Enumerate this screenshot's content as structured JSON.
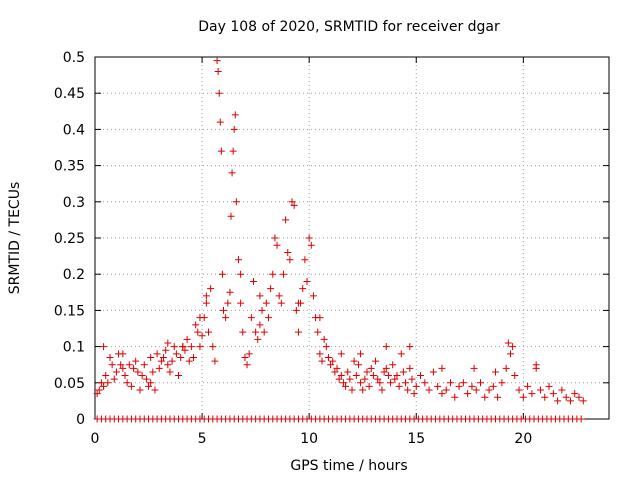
{
  "chart_data": {
    "type": "scatter",
    "title": "Day 108 of 2020, SRMTID for receiver dgar",
    "xlabel": "GPS time / hours",
    "ylabel": "SRMTID / TECUs",
    "xlim": [
      0,
      24
    ],
    "ylim": [
      0,
      0.5
    ],
    "x_ticks": [
      0,
      5,
      10,
      15,
      20
    ],
    "x_tick_labels": [
      "0",
      "5",
      "10",
      "15",
      "20"
    ],
    "y_ticks": [
      0,
      0.05,
      0.1,
      0.15,
      0.2,
      0.25,
      0.3,
      0.35,
      0.4,
      0.45,
      0.5
    ],
    "y_tick_labels": [
      "0",
      "0.05",
      "0.1",
      "0.15",
      "0.2",
      "0.25",
      "0.3",
      "0.35",
      "0.4",
      "0.45",
      "0.5"
    ],
    "grid": true,
    "marker": "+",
    "marker_color": "#dd0000",
    "series": [
      {
        "name": "SRMTID",
        "points": [
          [
            0.1,
            0.035
          ],
          [
            0.2,
            0.04
          ],
          [
            0.3,
            0.05
          ],
          [
            0.4,
            0.045
          ],
          [
            0.5,
            0.06
          ],
          [
            0.6,
            0.05
          ],
          [
            0.7,
            0.085
          ],
          [
            0.8,
            0.075
          ],
          [
            0.9,
            0.055
          ],
          [
            1.0,
            0.065
          ],
          [
            1.1,
            0.09
          ],
          [
            1.2,
            0.075
          ],
          [
            1.3,
            0.07
          ],
          [
            1.4,
            0.06
          ],
          [
            1.5,
            0.05
          ],
          [
            1.6,
            0.075
          ],
          [
            1.7,
            0.045
          ],
          [
            1.8,
            0.07
          ],
          [
            1.9,
            0.08
          ],
          [
            2.0,
            0.065
          ],
          [
            2.1,
            0.04
          ],
          [
            2.2,
            0.06
          ],
          [
            2.3,
            0.075
          ],
          [
            2.4,
            0.055
          ],
          [
            2.5,
            0.045
          ],
          [
            2.6,
            0.05
          ],
          [
            2.7,
            0.065
          ],
          [
            2.8,
            0.04
          ],
          [
            2.9,
            0.09
          ],
          [
            3.0,
            0.07
          ],
          [
            3.1,
            0.08
          ],
          [
            3.2,
            0.085
          ],
          [
            3.3,
            0.095
          ],
          [
            3.4,
            0.075
          ],
          [
            3.5,
            0.065
          ],
          [
            3.6,
            0.08
          ],
          [
            3.7,
            0.1
          ],
          [
            3.8,
            0.09
          ],
          [
            3.9,
            0.06
          ],
          [
            4.0,
            0.085
          ],
          [
            4.1,
            0.1
          ],
          [
            4.2,
            0.095
          ],
          [
            4.3,
            0.11
          ],
          [
            4.4,
            0.08
          ],
          [
            4.5,
            0.1
          ],
          [
            4.6,
            0.085
          ],
          [
            4.7,
            0.13
          ],
          [
            4.8,
            0.12
          ],
          [
            4.9,
            0.1
          ],
          [
            5.0,
            0.115
          ],
          [
            5.1,
            0.14
          ],
          [
            5.2,
            0.16
          ],
          [
            5.3,
            0.12
          ],
          [
            5.4,
            0.18
          ],
          [
            5.5,
            0.1
          ],
          [
            5.6,
            0.08
          ],
          [
            5.7,
            0.495
          ],
          [
            5.75,
            0.48
          ],
          [
            5.8,
            0.45
          ],
          [
            5.85,
            0.41
          ],
          [
            5.9,
            0.37
          ],
          [
            5.95,
            0.2
          ],
          [
            6.0,
            0.15
          ],
          [
            6.1,
            0.14
          ],
          [
            6.2,
            0.16
          ],
          [
            6.3,
            0.175
          ],
          [
            6.35,
            0.28
          ],
          [
            6.4,
            0.34
          ],
          [
            6.45,
            0.37
          ],
          [
            6.5,
            0.4
          ],
          [
            6.55,
            0.42
          ],
          [
            6.6,
            0.3
          ],
          [
            6.7,
            0.22
          ],
          [
            6.8,
            0.16
          ],
          [
            6.9,
            0.12
          ],
          [
            7.0,
            0.085
          ],
          [
            7.1,
            0.075
          ],
          [
            7.2,
            0.09
          ],
          [
            7.3,
            0.14
          ],
          [
            7.4,
            0.19
          ],
          [
            7.5,
            0.12
          ],
          [
            7.6,
            0.11
          ],
          [
            7.7,
            0.13
          ],
          [
            7.8,
            0.15
          ],
          [
            7.9,
            0.12
          ],
          [
            8.0,
            0.16
          ],
          [
            8.1,
            0.14
          ],
          [
            8.2,
            0.18
          ],
          [
            8.3,
            0.2
          ],
          [
            8.4,
            0.25
          ],
          [
            8.5,
            0.24
          ],
          [
            8.6,
            0.17
          ],
          [
            8.7,
            0.16
          ],
          [
            8.8,
            0.2
          ],
          [
            8.9,
            0.275
          ],
          [
            9.0,
            0.23
          ],
          [
            9.1,
            0.22
          ],
          [
            9.2,
            0.3
          ],
          [
            9.3,
            0.295
          ],
          [
            9.4,
            0.15
          ],
          [
            9.5,
            0.12
          ],
          [
            9.6,
            0.16
          ],
          [
            9.7,
            0.18
          ],
          [
            9.8,
            0.22
          ],
          [
            9.9,
            0.19
          ],
          [
            10.0,
            0.25
          ],
          [
            10.1,
            0.24
          ],
          [
            10.2,
            0.17
          ],
          [
            10.3,
            0.14
          ],
          [
            10.4,
            0.12
          ],
          [
            10.5,
            0.09
          ],
          [
            10.6,
            0.08
          ],
          [
            10.7,
            0.11
          ],
          [
            10.8,
            0.1
          ],
          [
            10.9,
            0.085
          ],
          [
            11.0,
            0.075
          ],
          [
            11.1,
            0.08
          ],
          [
            11.2,
            0.065
          ],
          [
            11.3,
            0.07
          ],
          [
            11.4,
            0.055
          ],
          [
            11.5,
            0.06
          ],
          [
            11.6,
            0.05
          ],
          [
            11.7,
            0.045
          ],
          [
            11.8,
            0.065
          ],
          [
            11.9,
            0.055
          ],
          [
            12.0,
            0.04
          ],
          [
            12.1,
            0.08
          ],
          [
            12.2,
            0.06
          ],
          [
            12.3,
            0.075
          ],
          [
            12.4,
            0.05
          ],
          [
            12.5,
            0.04
          ],
          [
            12.6,
            0.055
          ],
          [
            12.7,
            0.065
          ],
          [
            12.8,
            0.045
          ],
          [
            12.9,
            0.07
          ],
          [
            13.0,
            0.06
          ],
          [
            13.1,
            0.08
          ],
          [
            13.2,
            0.055
          ],
          [
            13.3,
            0.05
          ],
          [
            13.4,
            0.04
          ],
          [
            13.5,
            0.065
          ],
          [
            13.6,
            0.07
          ],
          [
            13.7,
            0.06
          ],
          [
            13.8,
            0.05
          ],
          [
            13.9,
            0.075
          ],
          [
            14.0,
            0.055
          ],
          [
            14.1,
            0.06
          ],
          [
            14.2,
            0.045
          ],
          [
            14.3,
            0.09
          ],
          [
            14.4,
            0.065
          ],
          [
            14.5,
            0.05
          ],
          [
            14.6,
            0.04
          ],
          [
            14.7,
            0.07
          ],
          [
            14.8,
            0.055
          ],
          [
            14.9,
            0.035
          ],
          [
            15.0,
            0.045
          ],
          [
            15.2,
            0.06
          ],
          [
            15.4,
            0.05
          ],
          [
            15.6,
            0.04
          ],
          [
            15.8,
            0.065
          ],
          [
            16.0,
            0.045
          ],
          [
            16.2,
            0.035
          ],
          [
            16.4,
            0.04
          ],
          [
            16.6,
            0.05
          ],
          [
            16.8,
            0.03
          ],
          [
            17.0,
            0.045
          ],
          [
            17.2,
            0.05
          ],
          [
            17.4,
            0.035
          ],
          [
            17.6,
            0.045
          ],
          [
            17.8,
            0.04
          ],
          [
            18.0,
            0.05
          ],
          [
            18.2,
            0.03
          ],
          [
            18.4,
            0.04
          ],
          [
            18.6,
            0.045
          ],
          [
            18.8,
            0.03
          ],
          [
            19.0,
            0.05
          ],
          [
            19.2,
            0.07
          ],
          [
            19.4,
            0.09
          ],
          [
            19.5,
            0.1
          ],
          [
            19.6,
            0.06
          ],
          [
            19.8,
            0.04
          ],
          [
            20.0,
            0.03
          ],
          [
            20.2,
            0.045
          ],
          [
            20.4,
            0.035
          ],
          [
            20.6,
            0.07
          ],
          [
            20.8,
            0.04
          ],
          [
            21.0,
            0.03
          ],
          [
            21.2,
            0.045
          ],
          [
            21.4,
            0.035
          ],
          [
            21.6,
            0.025
          ],
          [
            21.8,
            0.04
          ],
          [
            22.0,
            0.03
          ],
          [
            22.2,
            0.025
          ],
          [
            22.4,
            0.035
          ],
          [
            22.6,
            0.03
          ],
          [
            22.8,
            0.025
          ],
          [
            0.4,
            0.1
          ],
          [
            1.3,
            0.09
          ],
          [
            2.6,
            0.085
          ],
          [
            3.4,
            0.105
          ],
          [
            4.1,
            0.1
          ],
          [
            4.9,
            0.14
          ],
          [
            5.2,
            0.17
          ],
          [
            6.8,
            0.2
          ],
          [
            7.7,
            0.17
          ],
          [
            9.5,
            0.16
          ],
          [
            10.5,
            0.14
          ],
          [
            11.5,
            0.09
          ],
          [
            12.4,
            0.09
          ],
          [
            13.6,
            0.1
          ],
          [
            14.7,
            0.1
          ],
          [
            16.2,
            0.07
          ],
          [
            17.7,
            0.07
          ],
          [
            18.7,
            0.065
          ],
          [
            19.3,
            0.105
          ],
          [
            20.6,
            0.075
          ]
        ]
      }
    ],
    "zero_marker_x": [
      0.1,
      0.3,
      0.5,
      0.7,
      0.9,
      1.1,
      1.3,
      1.5,
      1.7,
      1.9,
      2.1,
      2.3,
      2.5,
      2.7,
      2.9,
      3.1,
      3.3,
      3.5,
      3.7,
      3.9,
      4.1,
      4.3,
      4.5,
      4.7,
      4.9,
      5.1,
      5.3,
      5.5,
      5.7,
      5.9,
      6.1,
      6.3,
      6.5,
      6.7,
      6.9,
      7.1,
      7.3,
      7.5,
      7.7,
      7.9,
      8.1,
      8.3,
      8.5,
      8.7,
      8.9,
      9.1,
      9.3,
      9.5,
      9.7,
      9.9,
      10.1,
      10.3,
      10.5,
      10.7,
      10.9,
      11.1,
      11.3,
      11.5,
      11.7,
      11.9,
      12.1,
      12.3,
      12.5,
      12.7,
      12.9,
      13.1,
      13.3,
      13.5,
      13.7,
      13.9,
      14.1,
      14.3,
      14.5,
      14.7,
      14.9,
      15.1,
      15.3,
      15.5,
      15.7,
      15.9,
      16.1,
      16.3,
      16.5,
      16.7,
      16.9,
      17.1,
      17.3,
      17.5,
      17.7,
      17.9,
      18.1,
      18.3,
      18.5,
      18.7,
      18.9,
      19.1,
      19.3,
      19.5,
      19.7,
      19.9,
      20.1,
      20.3,
      20.5,
      20.7,
      20.9,
      21.1,
      21.3,
      21.5,
      21.7,
      21.9,
      22.1,
      22.3,
      22.5,
      22.7
    ]
  }
}
